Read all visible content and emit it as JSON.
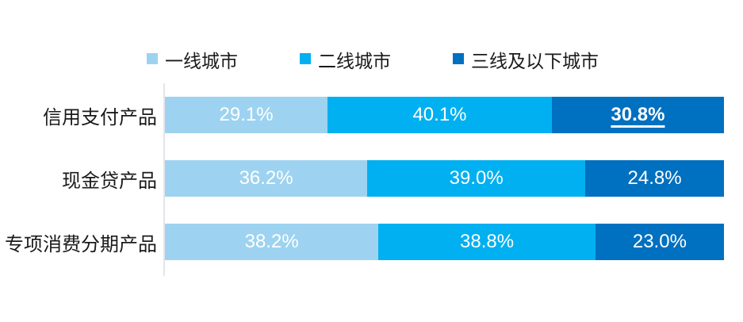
{
  "page": {
    "background_color": "#ffffff",
    "text_color": "#1a1a1a",
    "axis_line_color": "#e4e4ea",
    "value_label_color": "#ffffff"
  },
  "chart_data": {
    "type": "bar",
    "orientation": "horizontal",
    "stacked": true,
    "title": "",
    "xlabel": "",
    "ylabel": "",
    "xlim": [
      0,
      100
    ],
    "grid": false,
    "legend_position": "top",
    "categories": [
      "信用支付产品",
      "现金贷产品",
      "专项消费分期产品"
    ],
    "series": [
      {
        "name": "一线城市",
        "color": "#9DD3F0",
        "values": [
          29.1,
          36.2,
          38.2
        ]
      },
      {
        "name": "二线城市",
        "color": "#00B0F0",
        "values": [
          40.1,
          39.0,
          38.8
        ]
      },
      {
        "name": "三线及以下城市",
        "color": "#0070C0",
        "values": [
          30.8,
          24.8,
          23.0
        ]
      }
    ],
    "value_labels": [
      [
        "29.1%",
        "40.1%",
        "30.8%"
      ],
      [
        "36.2%",
        "39.0%",
        "24.8%"
      ],
      [
        "38.2%",
        "38.8%",
        "23.0%"
      ]
    ],
    "emphasis": {
      "category_index": 0,
      "series_index": 2,
      "style": "bold-underline"
    }
  }
}
